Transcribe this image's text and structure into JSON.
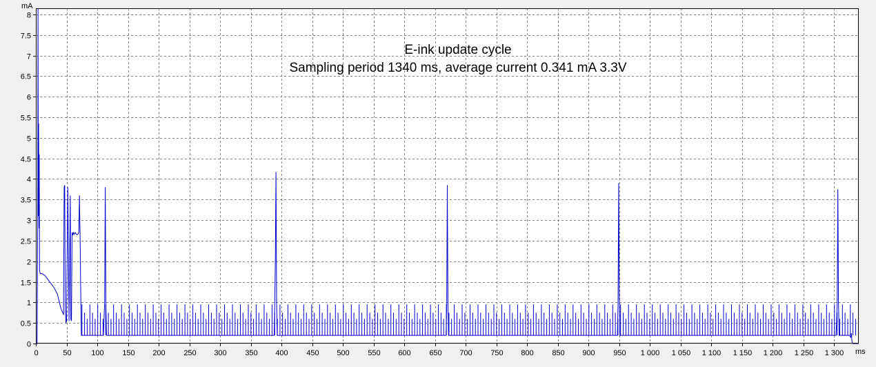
{
  "chart_data": {
    "type": "line",
    "title": "E-ink update cycle",
    "subtitle": "Sampling period 1340 ms, average current 0.341 mA 3.3V",
    "ylabel": "mA",
    "xlabel": "ms",
    "xlim": [
      0,
      1340
    ],
    "ylim": [
      0,
      8.15
    ],
    "grid": true,
    "x_ticks": [
      0,
      50,
      100,
      150,
      200,
      250,
      300,
      350,
      400,
      450,
      500,
      550,
      600,
      650,
      700,
      750,
      800,
      850,
      900,
      950,
      1000,
      1050,
      1100,
      1150,
      1200,
      1250,
      1300
    ],
    "x_tick_labels": [
      "0",
      "50",
      "100",
      "150",
      "200",
      "250",
      "300",
      "350",
      "400",
      "450",
      "500",
      "550",
      "600",
      "650",
      "700",
      "750",
      "800",
      "850",
      "900",
      "950",
      "1 000",
      "1 050",
      "1 100",
      "1 150",
      "1 200",
      "1 250",
      "1 300"
    ],
    "y_ticks": [
      0,
      0.5,
      1,
      1.5,
      2,
      2.5,
      3,
      3.5,
      4,
      4.5,
      5,
      5.5,
      6,
      6.5,
      7,
      7.5,
      8
    ],
    "y_tick_labels": [
      "0",
      "0.5",
      "1",
      "1.5",
      "2",
      "2.5",
      "3",
      "3.5",
      "4",
      "4.5",
      "5",
      "5.5",
      "6",
      "6.5",
      "7",
      "7.5",
      "8"
    ],
    "colors": {
      "series": "#0000cc",
      "grid": "#808080",
      "plot_bg": "#ffffff",
      "page_bg": "#f0f0f0"
    },
    "series": [
      {
        "name": "",
        "baseline": 0.2,
        "x": [
          0,
          1,
          2,
          3,
          3.5,
          4,
          4.5,
          5,
          5.5,
          6,
          7,
          8,
          10,
          15,
          20,
          25,
          30,
          35,
          40,
          42,
          44,
          45,
          46,
          47,
          48,
          49,
          50,
          52,
          54,
          56,
          57,
          58,
          59,
          60,
          61,
          62,
          64,
          66,
          68,
          70,
          71,
          72,
          73,
          74,
          75,
          76,
          80,
          100,
          110,
          112,
          113,
          114,
          115,
          116,
          120,
          385,
          388,
          389,
          390,
          391,
          392,
          393,
          400,
          665,
          668,
          669,
          670,
          671,
          672,
          675,
          944,
          947,
          948,
          949,
          950,
          951,
          952,
          955,
          1300,
          1303,
          1305,
          1306,
          1307,
          1308,
          1309,
          1310,
          1325,
          1327,
          1328,
          1329,
          1330,
          1333,
          1336,
          1340
        ],
        "y": [
          0,
          0,
          0,
          3.1,
          8.15,
          3.1,
          5.35,
          2.8,
          4.6,
          1.8,
          1.7,
          1.7,
          1.7,
          1.65,
          1.55,
          1.45,
          1.35,
          1.2,
          0.9,
          0.8,
          0.75,
          0.7,
          3.8,
          3.85,
          0.8,
          0.5,
          0.55,
          3.8,
          0.55,
          3.6,
          0.6,
          0.55,
          2.7,
          2.65,
          2.7,
          2.65,
          2.7,
          2.65,
          2.65,
          2.7,
          3.6,
          2.6,
          1.3,
          0.2,
          0.2,
          0.2,
          0.2,
          0.2,
          0.2,
          1.0,
          3.8,
          1.0,
          0.2,
          0.2,
          0.2,
          0.2,
          0.2,
          1.0,
          2.0,
          4.17,
          1.0,
          0.2,
          0.2,
          0.2,
          0.2,
          0.9,
          3.85,
          1.0,
          0.2,
          0.2,
          0.2,
          0.2,
          0.9,
          3.9,
          1.2,
          0.2,
          0.2,
          0.2,
          0.2,
          0.2,
          1.0,
          3.75,
          1.0,
          0.2,
          0.2,
          0.2,
          0.2,
          0.15,
          0.25,
          0.05,
          0.0,
          0.0,
          0.0,
          0.0
        ],
        "comb_spikes": {
          "x_range": [
            75,
            1335
          ],
          "spacing_ms": 4.3,
          "heights": [
            0.95,
            0.75,
            0.6
          ]
        }
      }
    ]
  }
}
